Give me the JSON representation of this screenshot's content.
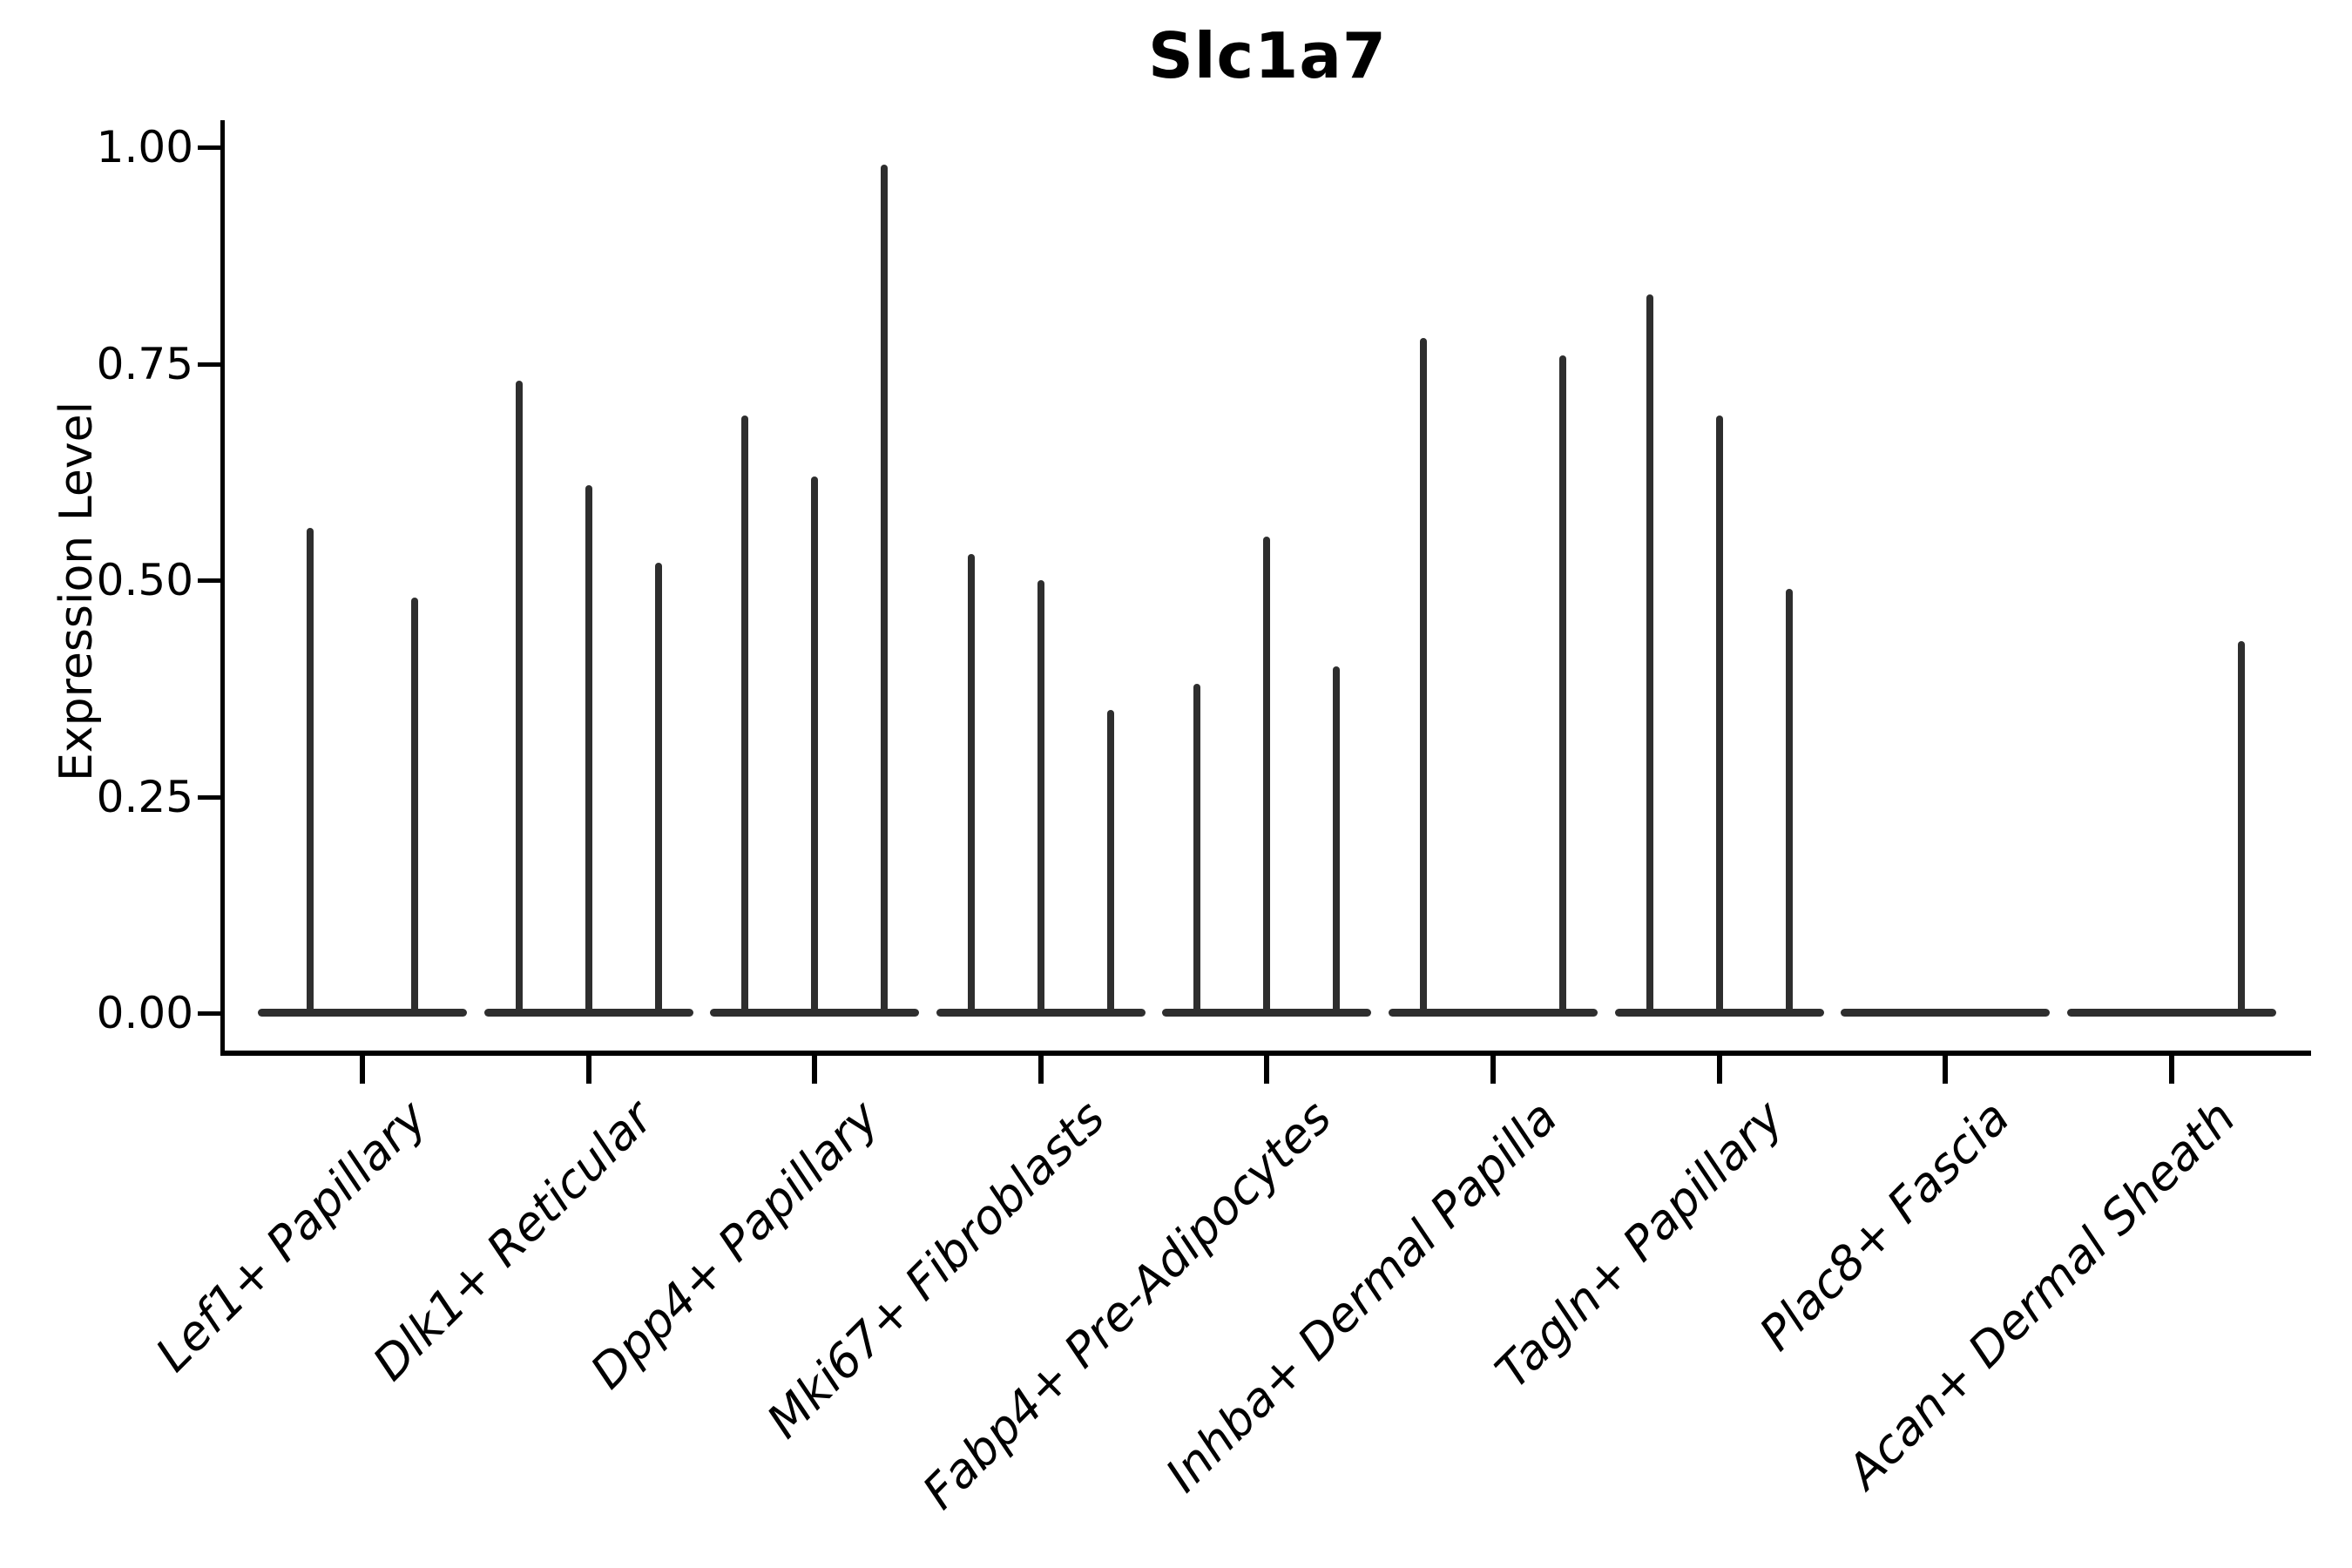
{
  "colors": {
    "violin": "#2e2e2e",
    "axis": "#000000",
    "text": "#000000",
    "background": "#ffffff"
  },
  "chart_data": {
    "type": "violin",
    "title": "Slc1a7",
    "xlabel": "",
    "ylabel": "Expression Level",
    "ylim": [
      0,
      1.0
    ],
    "grid": false,
    "legend": false,
    "yticks": [
      0.0,
      0.25,
      0.5,
      0.75,
      1.0
    ],
    "ytick_labels": [
      "0.00",
      "0.25",
      "0.50",
      "0.75",
      "1.00"
    ],
    "categories": [
      "Lef1+ Papillary",
      "Dlk1+ Reticular",
      "Dpp4+ Papillary",
      "Mki67+ Fibroblasts",
      "Fabp4+ Pre-Adipocytes",
      "Inhba+ Dermal Papilla",
      "Tagln+ Papillary",
      "Plac8+ Fascia",
      "Acan+ Dermal Sheath"
    ],
    "note": "Each category shows narrow spike-shaped violins rising from a flat baseline at 0; peaks are maximum expression values",
    "groups": [
      {
        "category": "Lef1+ Papillary",
        "n_slots": 2,
        "spikes": [
          {
            "slot": 0,
            "peak": 0.56
          },
          {
            "slot": 1,
            "peak": 0.48
          }
        ]
      },
      {
        "category": "Dlk1+ Reticular",
        "n_slots": 3,
        "spikes": [
          {
            "slot": 0,
            "peak": 0.73
          },
          {
            "slot": 1,
            "peak": 0.61
          },
          {
            "slot": 2,
            "peak": 0.52
          }
        ]
      },
      {
        "category": "Dpp4+ Papillary",
        "n_slots": 3,
        "spikes": [
          {
            "slot": 0,
            "peak": 0.69
          },
          {
            "slot": 1,
            "peak": 0.62
          },
          {
            "slot": 2,
            "peak": 0.98
          }
        ]
      },
      {
        "category": "Mki67+ Fibroblasts",
        "n_slots": 3,
        "spikes": [
          {
            "slot": 0,
            "peak": 0.53
          },
          {
            "slot": 1,
            "peak": 0.5
          },
          {
            "slot": 2,
            "peak": 0.35
          }
        ]
      },
      {
        "category": "Fabp4+ Pre-Adipocytes",
        "n_slots": 3,
        "spikes": [
          {
            "slot": 0,
            "peak": 0.38
          },
          {
            "slot": 1,
            "peak": 0.55
          },
          {
            "slot": 2,
            "peak": 0.4
          }
        ]
      },
      {
        "category": "Inhba+ Dermal Papilla",
        "n_slots": 3,
        "spikes": [
          {
            "slot": 0,
            "peak": 0.78
          },
          {
            "slot": 2,
            "peak": 0.76
          }
        ]
      },
      {
        "category": "Tagln+ Papillary",
        "n_slots": 3,
        "spikes": [
          {
            "slot": 0,
            "peak": 0.83
          },
          {
            "slot": 1,
            "peak": 0.69
          },
          {
            "slot": 2,
            "peak": 0.49
          }
        ]
      },
      {
        "category": "Plac8+ Fascia",
        "n_slots": 3,
        "spikes": []
      },
      {
        "category": "Acan+ Dermal Sheath",
        "n_slots": 3,
        "spikes": [
          {
            "slot": 2,
            "peak": 0.43
          }
        ]
      }
    ]
  }
}
